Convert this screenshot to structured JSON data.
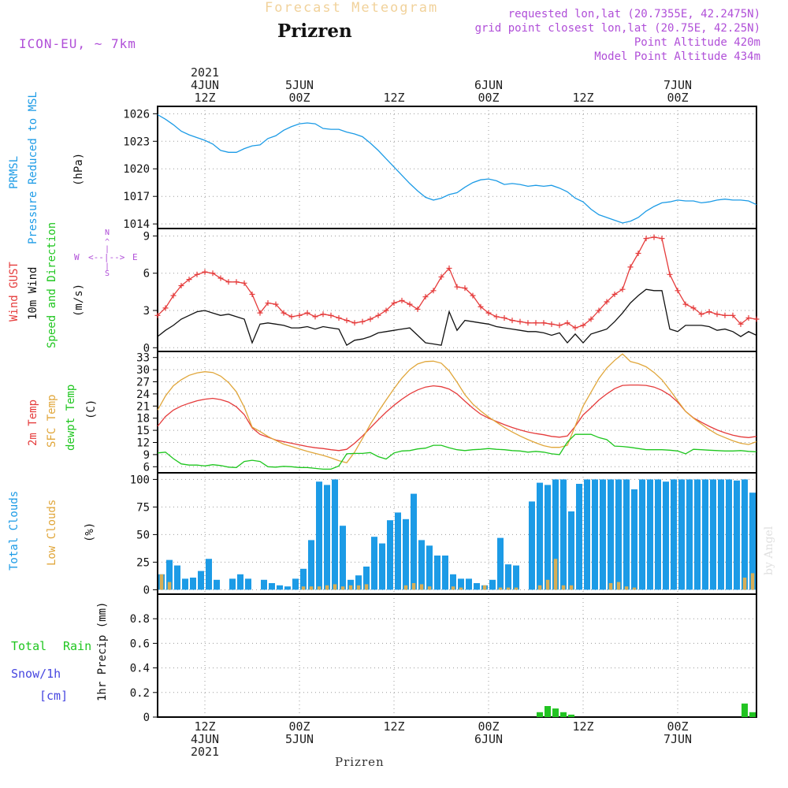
{
  "header": {
    "super_title": "Forecast Meteogram",
    "location": "Prizren",
    "model": "ICON-EU, ~ 7km",
    "requested": "requested lon,lat (20.7355E, 42.2475N)",
    "grid": "grid point closest lon,lat (20.75E, 42.25N)",
    "point_alt": "Point Altitude 420m",
    "model_alt": "Model Point Altitude 434m"
  },
  "time_labels": {
    "top": [
      {
        "t": 6,
        "lines": [
          "2021",
          "4JUN",
          "12Z"
        ]
      },
      {
        "t": 18,
        "lines": [
          "5JUN",
          "00Z"
        ]
      },
      {
        "t": 30,
        "lines": [
          "12Z"
        ]
      },
      {
        "t": 42,
        "lines": [
          "6JUN",
          "00Z"
        ]
      },
      {
        "t": 54,
        "lines": [
          "12Z"
        ]
      },
      {
        "t": 66,
        "lines": [
          "7JUN",
          "00Z"
        ]
      }
    ],
    "bottom": [
      {
        "t": 6,
        "lines": [
          "12Z",
          "4JUN",
          "2021"
        ]
      },
      {
        "t": 18,
        "lines": [
          "00Z",
          "5JUN"
        ]
      },
      {
        "t": 30,
        "lines": [
          "12Z"
        ]
      },
      {
        "t": 42,
        "lines": [
          "00Z",
          "6JUN"
        ]
      },
      {
        "t": 54,
        "lines": [
          "12Z"
        ]
      },
      {
        "t": 66,
        "lines": [
          "00Z",
          "7JUN"
        ]
      }
    ]
  },
  "footer": {
    "location": "Prizren",
    "watermark": "by Angel"
  },
  "panel_labels": {
    "pressure": {
      "line1": "PRMSL",
      "line2": "Pressure Reduced to MSL",
      "unit": "(hPa)"
    },
    "wind": {
      "gust": "Wind GUST",
      "wind10": "10m Wind",
      "speed": "Speed and Direction",
      "unit": "(m/s)"
    },
    "compass": {
      "n": "N",
      "s": "S",
      "w": "W",
      "e": "E"
    },
    "temp": {
      "t2m": "2m Temp",
      "sfc": "SFC Temp",
      "dew": "dewpt Temp",
      "unit": "(C)"
    },
    "cloud": {
      "total": "Total Clouds",
      "low": "Low Clouds",
      "unit": "(%)"
    },
    "precip": {
      "total": "Total",
      "rain": "Rain",
      "snow": "Snow/1h",
      "snow_unit": "[cm]",
      "axis": "1hr Precip (mm)"
    }
  },
  "colors": {
    "pressure": "#1c9be6",
    "gust": "#e53b3b",
    "wind": "#111111",
    "t2m": "#e53b3b",
    "sfc": "#e0a63a",
    "dew": "#1fc61f",
    "total_cloud": "#1c9be6",
    "low_cloud": "#d8ae56",
    "rain": "#22c422",
    "grid": "#9a9a9a"
  },
  "chart_data": [
    {
      "type": "line",
      "title": "PRMSL Pressure Reduced to MSL",
      "ylabel": "(hPa)",
      "ylim": [
        1013.5,
        1026.8
      ],
      "yticks": [
        1014,
        1017,
        1020,
        1023,
        1026
      ],
      "t_start": 0,
      "t_end": 76,
      "t_step": 1,
      "series": [
        {
          "name": "PRMSL",
          "values": [
            1025.9,
            1025.4,
            1024.8,
            1024.1,
            1023.7,
            1023.4,
            1023.1,
            1022.7,
            1022.0,
            1021.8,
            1021.8,
            1022.2,
            1022.5,
            1022.6,
            1023.3,
            1023.6,
            1024.2,
            1024.6,
            1024.9,
            1025.0,
            1024.9,
            1024.4,
            1024.3,
            1024.3,
            1024.0,
            1023.8,
            1023.5,
            1022.8,
            1022.0,
            1021.1,
            1020.2,
            1019.3,
            1018.4,
            1017.6,
            1016.9,
            1016.6,
            1016.8,
            1017.2,
            1017.4,
            1018.0,
            1018.5,
            1018.8,
            1018.9,
            1018.7,
            1018.3,
            1018.4,
            1018.3,
            1018.1,
            1018.2,
            1018.1,
            1018.2,
            1017.9,
            1017.5,
            1016.8,
            1016.4,
            1015.6,
            1015.0,
            1014.7,
            1014.4,
            1014.1,
            1014.3,
            1014.7,
            1015.4,
            1015.9,
            1016.3,
            1016.4,
            1016.6,
            1016.5,
            1016.5,
            1016.3,
            1016.4,
            1016.6,
            1016.7,
            1016.6,
            1016.6,
            1016.5,
            1016.1
          ]
        }
      ]
    },
    {
      "type": "line",
      "title": "Wind GUST / 10m Wind Speed and Direction",
      "ylabel": "(m/s)",
      "ylim": [
        -0.3,
        9.6
      ],
      "yticks": [
        0,
        3,
        6,
        9
      ],
      "t_start": 0,
      "t_end": 76,
      "t_step": 1,
      "series": [
        {
          "name": "Wind GUST",
          "values": [
            2.6,
            3.2,
            4.2,
            5.0,
            5.5,
            5.9,
            6.1,
            6.0,
            5.6,
            5.3,
            5.3,
            5.2,
            4.3,
            2.8,
            3.6,
            3.5,
            2.8,
            2.5,
            2.6,
            2.8,
            2.5,
            2.7,
            2.6,
            2.4,
            2.2,
            2.0,
            2.1,
            2.3,
            2.6,
            3.0,
            3.6,
            3.8,
            3.5,
            3.1,
            4.1,
            4.6,
            5.7,
            6.4,
            4.9,
            4.8,
            4.2,
            3.3,
            2.8,
            2.5,
            2.4,
            2.2,
            2.1,
            2.0,
            2.0,
            2.0,
            1.9,
            1.8,
            2.0,
            1.6,
            1.8,
            2.3,
            3.0,
            3.7,
            4.3,
            4.7,
            6.5,
            7.6,
            8.8,
            8.9,
            8.8,
            5.9,
            4.6,
            3.5,
            3.2,
            2.7,
            2.9,
            2.7,
            2.6,
            2.6,
            1.9,
            2.4,
            2.3
          ]
        },
        {
          "name": "10m Wind",
          "values": [
            0.9,
            1.4,
            1.8,
            2.3,
            2.6,
            2.9,
            3.0,
            2.8,
            2.6,
            2.7,
            2.5,
            2.3,
            0.4,
            1.9,
            2.0,
            1.9,
            1.8,
            1.6,
            1.6,
            1.7,
            1.5,
            1.7,
            1.6,
            1.5,
            0.2,
            0.6,
            0.7,
            0.9,
            1.2,
            1.3,
            1.4,
            1.5,
            1.6,
            1.0,
            0.4,
            0.3,
            0.2,
            2.9,
            1.4,
            2.2,
            2.1,
            2.0,
            1.9,
            1.7,
            1.6,
            1.5,
            1.4,
            1.3,
            1.3,
            1.2,
            1.0,
            1.2,
            0.4,
            1.1,
            0.4,
            1.1,
            1.3,
            1.5,
            2.1,
            2.8,
            3.6,
            4.2,
            4.7,
            4.6,
            4.6,
            1.5,
            1.3,
            1.8,
            1.8,
            1.8,
            1.7,
            1.4,
            1.5,
            1.3,
            0.9,
            1.3,
            1.0
          ]
        }
      ]
    },
    {
      "type": "line",
      "title": "2m Temp / SFC Temp / dewpt Temp",
      "ylabel": "(C)",
      "ylim": [
        4.5,
        34.5
      ],
      "yticks": [
        6,
        9,
        12,
        15,
        18,
        21,
        24,
        27,
        30,
        33
      ],
      "t_start": 0,
      "t_end": 76,
      "t_step": 1,
      "series": [
        {
          "name": "2m Temp",
          "values": [
            16.0,
            18.4,
            20.0,
            21.0,
            21.7,
            22.3,
            22.7,
            22.9,
            22.6,
            22.0,
            20.8,
            18.9,
            15.6,
            14.0,
            13.3,
            12.6,
            12.2,
            11.8,
            11.4,
            11.0,
            10.7,
            10.5,
            10.2,
            10.0,
            10.3,
            11.8,
            13.6,
            15.6,
            17.6,
            19.5,
            21.2,
            22.7,
            24.0,
            25.0,
            25.7,
            26.0,
            25.8,
            25.2,
            24.0,
            22.2,
            20.5,
            19.0,
            18.0,
            17.2,
            16.4,
            15.7,
            15.1,
            14.6,
            14.2,
            13.9,
            13.5,
            13.3,
            13.6,
            16.0,
            18.8,
            20.6,
            22.5,
            24.0,
            25.3,
            26.1,
            26.2,
            26.2,
            26.1,
            25.7,
            24.9,
            23.7,
            22.0,
            19.7,
            18.1,
            17.0,
            16.0,
            15.1,
            14.4,
            13.8,
            13.4,
            13.2,
            13.5
          ]
        },
        {
          "name": "SFC Temp",
          "values": [
            20.0,
            23.5,
            26.0,
            27.5,
            28.6,
            29.2,
            29.5,
            29.3,
            28.4,
            26.8,
            24.5,
            20.7,
            15.8,
            14.7,
            13.5,
            12.5,
            11.6,
            11.0,
            10.4,
            9.8,
            9.3,
            8.8,
            8.2,
            7.5,
            7.0,
            9.6,
            13.0,
            16.5,
            19.6,
            22.5,
            25.3,
            27.9,
            30.0,
            31.4,
            32.0,
            32.1,
            31.6,
            29.7,
            26.9,
            23.8,
            21.5,
            19.8,
            18.3,
            17.0,
            15.7,
            14.6,
            13.6,
            12.7,
            11.9,
            11.2,
            10.8,
            10.8,
            11.3,
            16.1,
            21.0,
            24.4,
            27.8,
            30.4,
            32.3,
            33.9,
            32.0,
            31.5,
            30.7,
            29.3,
            27.5,
            25.0,
            22.3,
            19.7,
            18.0,
            16.6,
            15.2,
            14.0,
            13.2,
            12.4,
            11.8,
            11.5,
            12.2
          ]
        },
        {
          "name": "dewpt Temp",
          "values": [
            9.4,
            9.6,
            8.0,
            6.7,
            6.4,
            6.4,
            6.2,
            6.5,
            6.3,
            5.9,
            5.8,
            7.3,
            7.6,
            7.3,
            6.0,
            5.9,
            6.1,
            6.0,
            5.8,
            5.8,
            5.6,
            5.4,
            5.4,
            6.2,
            9.2,
            9.3,
            9.3,
            9.5,
            8.5,
            7.9,
            9.4,
            9.9,
            10.0,
            10.4,
            10.6,
            11.3,
            11.3,
            10.7,
            10.2,
            10.0,
            10.2,
            10.3,
            10.5,
            10.3,
            10.2,
            10.0,
            9.9,
            9.6,
            9.8,
            9.6,
            9.2,
            9.0,
            12.1,
            14.0,
            14.0,
            14.0,
            13.2,
            12.7,
            11.1,
            11.0,
            10.8,
            10.5,
            10.2,
            10.2,
            10.2,
            10.1,
            9.9,
            9.2,
            10.3,
            10.2,
            10.1,
            10.0,
            9.9,
            9.9,
            10.0,
            9.8,
            9.7
          ]
        }
      ]
    },
    {
      "type": "bar",
      "title": "Total Clouds / Low Clouds",
      "ylabel": "(%)",
      "ylim": [
        -4,
        106
      ],
      "yticks": [
        0,
        25,
        50,
        75,
        100
      ],
      "t_start": 1,
      "t_step": 1,
      "series": [
        {
          "name": "Total Clouds",
          "values": [
            14,
            27,
            22,
            10,
            11,
            17,
            28,
            9,
            0,
            10,
            14,
            10,
            0,
            9,
            6,
            4,
            3,
            10,
            19,
            45,
            98,
            95,
            100,
            58,
            9,
            13,
            21,
            48,
            42,
            63,
            70,
            64,
            87,
            45,
            40,
            31,
            31,
            14,
            10,
            10,
            6,
            4,
            9,
            47,
            23,
            22,
            0,
            80,
            97,
            95,
            100,
            100,
            71,
            96,
            100,
            100,
            100,
            100,
            100,
            100,
            91,
            100,
            100,
            100,
            98,
            100,
            100,
            100,
            100,
            100,
            100,
            100,
            100,
            99,
            100,
            88
          ]
        },
        {
          "name": "Low Clouds",
          "values": [
            14,
            7,
            0,
            0,
            0,
            0,
            0,
            0,
            0,
            0,
            0,
            0,
            0,
            0,
            0,
            0,
            0,
            0,
            3,
            3,
            3,
            4,
            5,
            3,
            4,
            4,
            5,
            0,
            0,
            0,
            0,
            4,
            6,
            5,
            3,
            0,
            0,
            3,
            2,
            0,
            0,
            4,
            0,
            2,
            2,
            2,
            0,
            0,
            4,
            9,
            28,
            4,
            4,
            0,
            0,
            0,
            0,
            6,
            7,
            3,
            2,
            0,
            0,
            0,
            0,
            0,
            0,
            0,
            0,
            0,
            0,
            0,
            0,
            0,
            11,
            15
          ]
        }
      ]
    },
    {
      "type": "bar",
      "title": "Total Rain / Snow per 1h",
      "ylabel": "1hr Precip (mm)",
      "ylim": [
        0,
        1.0
      ],
      "yticks": [
        0,
        0.2,
        0.4,
        0.6,
        0.8
      ],
      "t_start": 1,
      "t_step": 1,
      "series": [
        {
          "name": "Total Rain",
          "values": [
            0,
            0,
            0,
            0,
            0,
            0,
            0,
            0,
            0,
            0,
            0,
            0,
            0,
            0,
            0,
            0,
            0,
            0,
            0,
            0,
            0,
            0,
            0,
            0,
            0,
            0,
            0,
            0,
            0,
            0,
            0,
            0,
            0,
            0,
            0,
            0,
            0,
            0,
            0,
            0,
            0,
            0,
            0,
            0,
            0,
            0,
            0,
            0,
            0.04,
            0.09,
            0.07,
            0.04,
            0.02,
            0,
            0,
            0,
            0,
            0,
            0,
            0,
            0,
            0,
            0,
            0,
            0,
            0,
            0,
            0,
            0,
            0,
            0,
            0,
            0,
            0,
            0.11,
            0.04
          ]
        }
      ]
    }
  ]
}
